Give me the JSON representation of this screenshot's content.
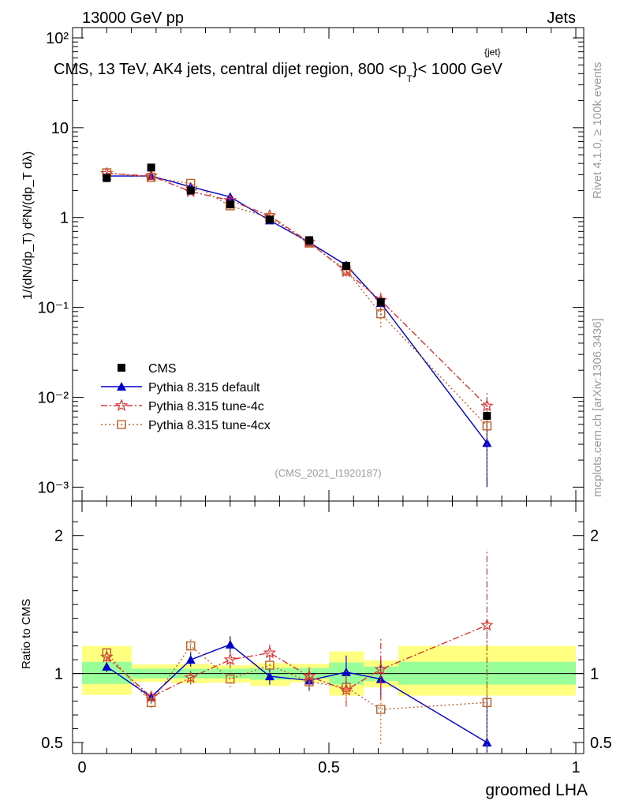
{
  "header": {
    "energy_label": "13000 GeV pp",
    "category_label": "Jets",
    "plot_title": "CMS, 13 TeV, AK4 jets, central dijet region, 800 <p",
    "plot_title_super": "{jet}",
    "plot_title_sub": "T",
    "plot_title_end": "}< 1000 GeV"
  },
  "side_labels": {
    "rivet": "Rivet 4.1.0, ≥ 100k events",
    "mcplots": "mcplots.cern.ch [arXiv:1306.3436]"
  },
  "analysis_id": "(CMS_2021_I1920187)",
  "colors": {
    "cms": "#000000",
    "default": "#0000cc",
    "tune4c": "#dd3333",
    "tune4cx": "#c0602a",
    "band_yellow": "#ffff80",
    "band_green": "#99ff99"
  },
  "chart_data": [
    {
      "type": "scatter",
      "panel": "main",
      "yscale": "log",
      "ylabel": "1/(dN/dp_T) d²N/(dp_T dλ)",
      "ylim": [
        0.0007,
        130
      ],
      "xlim": [
        -0.02,
        1.0
      ],
      "y_tick_labels": [
        "10⁻³",
        "10⁻²",
        "10⁻¹",
        "1",
        "10",
        "10²"
      ],
      "x": [
        0.05,
        0.14,
        0.22,
        0.3,
        0.38,
        0.46,
        0.535,
        0.605,
        0.82
      ],
      "series": [
        {
          "name": "CMS",
          "key": "cms",
          "values": [
            2.75,
            3.6,
            2.0,
            1.4,
            0.95,
            0.56,
            0.29,
            0.115,
            0.0062
          ]
        },
        {
          "name": "Pythia 8.315 default",
          "key": "default",
          "values": [
            2.9,
            2.9,
            2.2,
            1.7,
            0.93,
            0.53,
            0.295,
            0.112,
            0.0031
          ],
          "errors": [
            0.15,
            0.15,
            0.12,
            0.1,
            0.05,
            0.04,
            0.03,
            0.015,
            0.0021
          ]
        },
        {
          "name": "Pythia 8.315 tune-4c",
          "key": "tune4c",
          "values": [
            3.1,
            2.9,
            1.95,
            1.55,
            1.05,
            0.53,
            0.25,
            0.12,
            0.008
          ],
          "errors": [
            0.15,
            0.15,
            0.1,
            0.1,
            0.06,
            0.04,
            0.03,
            0.03,
            0.0035
          ]
        },
        {
          "name": "Pythia 8.315 tune-4cx",
          "key": "tune4cx",
          "values": [
            3.15,
            2.8,
            2.4,
            1.35,
            1.0,
            0.52,
            0.26,
            0.085,
            0.0048
          ],
          "errors": [
            0.15,
            0.15,
            0.12,
            0.1,
            0.06,
            0.04,
            0.035,
            0.025,
            0.0035
          ]
        }
      ],
      "legend": [
        "CMS",
        "Pythia 8.315 default",
        "Pythia 8.315 tune-4c",
        "Pythia 8.315 tune-4cx"
      ],
      "legend_position": "bottom-left"
    },
    {
      "type": "scatter",
      "panel": "ratio",
      "ylabel": "Ratio to CMS",
      "xlabel": "groomed LHA",
      "ylim": [
        0.42,
        2.25
      ],
      "y_ticks": [
        0.5,
        1,
        2
      ],
      "y_tick_labels": [
        "0.5",
        "1",
        "2"
      ],
      "x_ticks": [
        0,
        0.5,
        1
      ],
      "x_tick_labels": [
        "0",
        "0.5",
        "1"
      ],
      "bands": [
        {
          "x": [
            0.0,
            0.1
          ],
          "yellow": [
            0.845,
            1.2
          ],
          "green": [
            0.925,
            1.085
          ]
        },
        {
          "x": [
            0.1,
            0.18
          ],
          "yellow": [
            0.94,
            1.065
          ],
          "green": [
            0.965,
            1.035
          ]
        },
        {
          "x": [
            0.18,
            0.26
          ],
          "yellow": [
            0.93,
            1.07
          ],
          "green": [
            0.965,
            1.035
          ]
        },
        {
          "x": [
            0.26,
            0.34
          ],
          "yellow": [
            0.935,
            1.06
          ],
          "green": [
            0.965,
            1.035
          ]
        },
        {
          "x": [
            0.34,
            0.42
          ],
          "yellow": [
            0.91,
            1.075
          ],
          "green": [
            0.955,
            1.04
          ]
        },
        {
          "x": [
            0.42,
            0.5
          ],
          "yellow": [
            0.935,
            1.07
          ],
          "green": [
            0.965,
            1.04
          ]
        },
        {
          "x": [
            0.5,
            0.57
          ],
          "yellow": [
            0.84,
            1.16
          ],
          "green": [
            0.92,
            1.08
          ]
        },
        {
          "x": [
            0.57,
            0.64
          ],
          "yellow": [
            0.9,
            1.095
          ],
          "green": [
            0.945,
            1.05
          ]
        },
        {
          "x": [
            0.64,
            1.0
          ],
          "yellow": [
            0.84,
            1.2
          ],
          "green": [
            0.92,
            1.085
          ]
        }
      ],
      "x": [
        0.05,
        0.14,
        0.22,
        0.3,
        0.38,
        0.46,
        0.535,
        0.605,
        0.82
      ],
      "series": [
        {
          "name": "Pythia 8.315 default",
          "key": "default",
          "values": [
            1.05,
            0.83,
            1.1,
            1.21,
            0.98,
            0.95,
            1.01,
            0.96,
            0.5
          ],
          "errors": [
            0.04,
            0.04,
            0.05,
            0.06,
            0.06,
            0.07,
            0.12,
            0.14,
            0.33
          ]
        },
        {
          "name": "Pythia 8.315 tune-4c",
          "key": "tune4c",
          "values": [
            1.12,
            0.83,
            0.97,
            1.1,
            1.15,
            0.98,
            0.88,
            1.03,
            1.35
          ],
          "errors": [
            0.04,
            0.04,
            0.05,
            0.06,
            0.06,
            0.07,
            0.12,
            0.22,
            0.55
          ]
        },
        {
          "name": "Pythia 8.315 tune-4cx",
          "key": "tune4cx",
          "values": [
            1.15,
            0.79,
            1.2,
            0.96,
            1.06,
            0.94,
            0.9,
            0.74,
            0.79
          ],
          "errors": [
            0.04,
            0.04,
            0.05,
            0.06,
            0.06,
            0.07,
            0.12,
            0.25,
            0.55
          ]
        }
      ]
    }
  ]
}
